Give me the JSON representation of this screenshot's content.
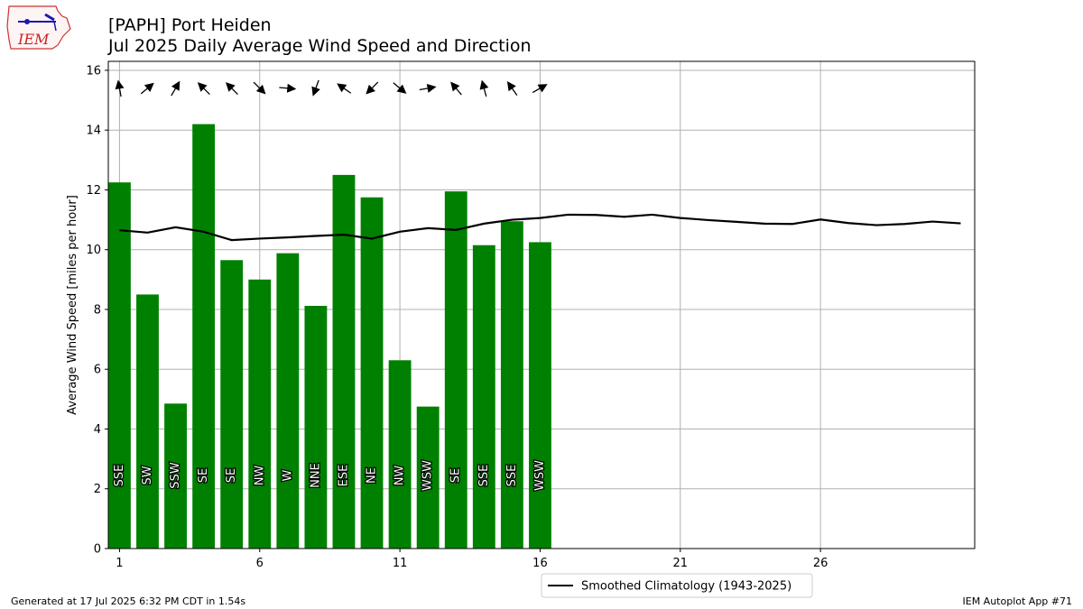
{
  "header": {
    "title": "[PAPH] Port Heiden",
    "subtitle": "Jul 2025 Daily Average Wind Speed and Direction"
  },
  "logo_text": "IEM",
  "footer": {
    "generated": "Generated at 17 Jul 2025 6:32 PM CDT in 1.54s",
    "app": "IEM Autoplot App #71"
  },
  "colors": {
    "bar": "#008000",
    "climo": "#000000",
    "grid": "#b0b0b0"
  },
  "chart_data": {
    "type": "bar",
    "title": "[PAPH] Port Heiden",
    "subtitle": "Jul 2025 Daily Average Wind Speed and Direction",
    "xlabel": "",
    "ylabel": "Average Wind Speed [miles per hour]",
    "xlim": [
      0.6,
      31.5
    ],
    "ylim": [
      0,
      16.3
    ],
    "xticks": [
      1,
      6,
      11,
      16,
      21,
      26
    ],
    "yticks": [
      0,
      2,
      4,
      6,
      8,
      10,
      12,
      14,
      16
    ],
    "grid": true,
    "legend": {
      "location": "bottom-center",
      "entries": [
        "Smoothed Climatology (1943-2025)"
      ]
    },
    "bars": {
      "days": [
        1,
        2,
        3,
        4,
        5,
        6,
        7,
        8,
        9,
        10,
        11,
        12,
        13,
        14,
        15,
        16
      ],
      "values": [
        12.25,
        8.5,
        4.85,
        14.2,
        9.65,
        9.0,
        9.88,
        8.12,
        12.5,
        11.75,
        6.3,
        4.75,
        11.95,
        10.15,
        10.95,
        10.25
      ],
      "directions": [
        "SSE",
        "SW",
        "SSW",
        "SE",
        "SE",
        "NW",
        "W",
        "NNE",
        "ESE",
        "NE",
        "NW",
        "WSW",
        "SE",
        "SSE",
        "SSE",
        "WSW"
      ],
      "arrow_angles_deg": [
        100,
        40,
        60,
        135,
        135,
        315,
        355,
        250,
        145,
        225,
        320,
        10,
        130,
        105,
        125,
        30
      ]
    },
    "climatology": {
      "name": "Smoothed Climatology (1943-2025)",
      "days": [
        1,
        2,
        3,
        4,
        5,
        6,
        7,
        8,
        9,
        10,
        11,
        12,
        13,
        14,
        15,
        16,
        17,
        18,
        19,
        20,
        21,
        22,
        23,
        24,
        25,
        26,
        27,
        28,
        29,
        30,
        31
      ],
      "values": [
        10.65,
        10.57,
        10.75,
        10.6,
        10.32,
        10.37,
        10.41,
        10.46,
        10.5,
        10.37,
        10.6,
        10.72,
        10.66,
        10.87,
        11.0,
        11.06,
        11.17,
        11.16,
        11.1,
        11.17,
        11.06,
        10.99,
        10.93,
        10.87,
        10.86,
        11.01,
        10.89,
        10.82,
        10.86,
        10.94,
        10.88
      ]
    }
  }
}
